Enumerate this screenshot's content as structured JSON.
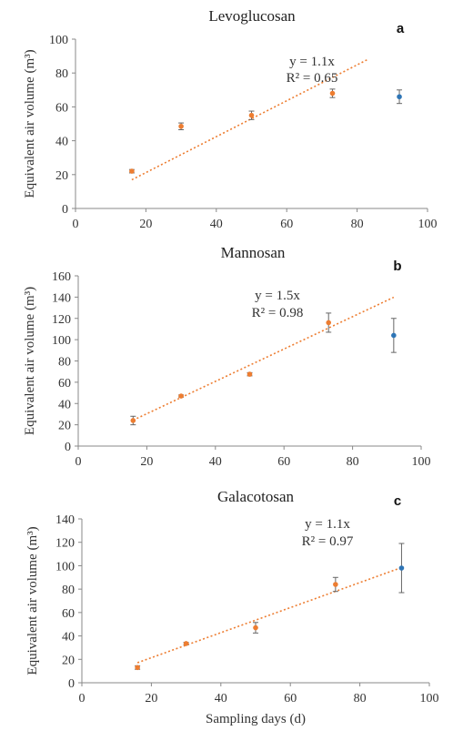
{
  "chart_data": [
    {
      "type": "scatter",
      "panel": "a",
      "title": "Levoglucosan",
      "xlabel": "",
      "ylabel": "Equivalent air volume (m³)",
      "xlim": [
        0,
        100
      ],
      "ylim": [
        0,
        100
      ],
      "xticks": [
        0,
        20,
        40,
        60,
        80,
        100
      ],
      "yticks": [
        0,
        20,
        40,
        60,
        80,
        100
      ],
      "grid": false,
      "trendline": {
        "equation": "y = 1.1x",
        "r2": "R² = 0.65",
        "slope": 1.06,
        "x_range": [
          16,
          83
        ],
        "color": "#ED7D31"
      },
      "series": [
        {
          "color": "#ED7D31",
          "points": [
            {
              "x": 16,
              "y": 22,
              "err": 1
            },
            {
              "x": 30,
              "y": 48.5,
              "err": 2
            },
            {
              "x": 50,
              "y": 55,
              "err": 2.5
            },
            {
              "x": 73,
              "y": 68,
              "err": 2.5
            }
          ]
        },
        {
          "color": "#2E75B6",
          "points": [
            {
              "x": 92,
              "y": 66,
              "err": 4
            }
          ]
        }
      ]
    },
    {
      "type": "scatter",
      "panel": "b",
      "title": "Mannosan",
      "xlabel": "",
      "ylabel": "Equivalent air volume (m³)",
      "xlim": [
        0,
        100
      ],
      "ylim": [
        0,
        160
      ],
      "xticks": [
        0,
        20,
        40,
        60,
        80,
        100
      ],
      "yticks": [
        0,
        20,
        40,
        60,
        80,
        100,
        120,
        140,
        160
      ],
      "grid": false,
      "trendline": {
        "equation": "y = 1.5x",
        "r2": "R² = 0.98",
        "slope": 1.52,
        "x_range": [
          16,
          92
        ],
        "color": "#ED7D31"
      },
      "series": [
        {
          "color": "#ED7D31",
          "points": [
            {
              "x": 16,
              "y": 24,
              "err": 4
            },
            {
              "x": 30,
              "y": 47,
              "err": 1
            },
            {
              "x": 50,
              "y": 67.5,
              "err": 1.5
            },
            {
              "x": 73,
              "y": 116,
              "err": 9
            }
          ]
        },
        {
          "color": "#2E75B6",
          "points": [
            {
              "x": 92,
              "y": 104,
              "err": 16
            }
          ]
        }
      ]
    },
    {
      "type": "scatter",
      "panel": "c",
      "title": "Galacotosan",
      "xlabel": "Sampling days (d)",
      "ylabel": "Equivalent air volume (m³)",
      "xlim": [
        0,
        100
      ],
      "ylim": [
        0,
        140
      ],
      "xticks": [
        0,
        20,
        40,
        60,
        80,
        100
      ],
      "yticks": [
        0,
        20,
        40,
        60,
        80,
        100,
        120,
        140
      ],
      "grid": false,
      "trendline": {
        "equation": "y = 1.1x",
        "r2": "R² = 0.97",
        "slope": 1.07,
        "x_range": [
          16,
          92
        ],
        "color": "#ED7D31"
      },
      "series": [
        {
          "color": "#ED7D31",
          "points": [
            {
              "x": 16,
              "y": 13,
              "err": 1.5
            },
            {
              "x": 30,
              "y": 33.5,
              "err": 1
            },
            {
              "x": 50,
              "y": 47,
              "err": 4.5
            },
            {
              "x": 73,
              "y": 84,
              "err": 6
            }
          ]
        },
        {
          "color": "#2E75B6",
          "points": [
            {
              "x": 92,
              "y": 98,
              "err": 21
            }
          ]
        }
      ]
    }
  ]
}
